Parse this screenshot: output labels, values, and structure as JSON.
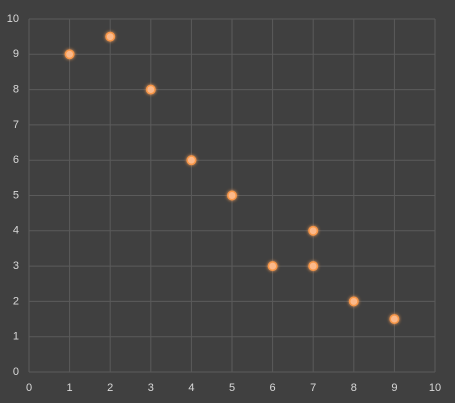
{
  "chart_data": {
    "type": "scatter",
    "x": [
      1,
      2,
      3,
      4,
      5,
      6,
      7,
      7,
      8,
      9
    ],
    "values": [
      9,
      9.5,
      8,
      6,
      5,
      3,
      4,
      3,
      2,
      1.5
    ],
    "color": "#f79646",
    "xlim": [
      0,
      10
    ],
    "ylim": [
      0,
      10
    ],
    "xticks": [
      0,
      1,
      2,
      3,
      4,
      5,
      6,
      7,
      8,
      9,
      10
    ],
    "yticks": [
      0,
      1,
      2,
      3,
      4,
      5,
      6,
      7,
      8,
      9,
      10
    ],
    "grid": true
  }
}
